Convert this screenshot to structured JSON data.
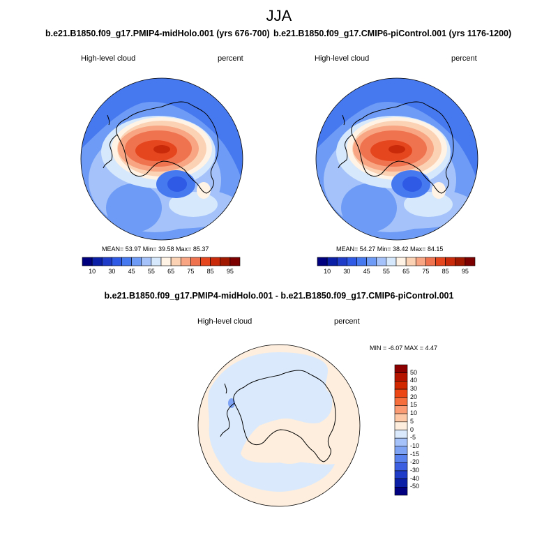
{
  "season_title": "JJA",
  "panels": [
    {
      "case_title": "b.e21.B1850.f09_g17.PMIP4-midHolo.001 (yrs 676-700)",
      "variable": "High-level cloud",
      "units": "percent",
      "stats": "MEAN=  53.97   Min=  39.58   Max=  85.37"
    },
    {
      "case_title": "b.e21.B1850.f09_g17.CMIP6-piControl.001 (yrs 1176-1200)",
      "variable": "High-level cloud",
      "units": "percent",
      "stats": "MEAN=  54.27   Min=  38.42   Max=  84.15"
    }
  ],
  "difference": {
    "case_title": "b.e21.B1850.f09_g17.PMIP4-midHolo.001 - b.e21.B1850.f09_g17.CMIP6-piControl.001",
    "variable": "High-level cloud",
    "units": "percent",
    "stats": "MIN =  -6.07 MAX =   4.47"
  },
  "chart_data": [
    {
      "type": "heatmap",
      "title": "b.e21.B1850.f09_g17.PMIP4-midHolo.001 (yrs 676-700)",
      "projection": "south polar stereographic",
      "variable": "High-level cloud",
      "units": "percent",
      "mean": 53.97,
      "min": 39.58,
      "max": 85.37,
      "colorbar_ticks": [
        "10",
        "30",
        "45",
        "55",
        "65",
        "75",
        "85",
        "95"
      ],
      "colorbar_colors": [
        "#00007f",
        "#0a1ea6",
        "#1e3cc8",
        "#2e5ae6",
        "#4678f0",
        "#6e9bf5",
        "#a5c3fa",
        "#d5e8fc",
        "#fff3e6",
        "#fcd2b4",
        "#f7a582",
        "#f07350",
        "#e6461e",
        "#c82a0a",
        "#a01800",
        "#7d0000"
      ]
    },
    {
      "type": "heatmap",
      "title": "b.e21.B1850.f09_g17.CMIP6-piControl.001 (yrs 1176-1200)",
      "projection": "south polar stereographic",
      "variable": "High-level cloud",
      "units": "percent",
      "mean": 54.27,
      "min": 38.42,
      "max": 84.15,
      "colorbar_ticks": [
        "10",
        "30",
        "45",
        "55",
        "65",
        "75",
        "85",
        "95"
      ],
      "colorbar_colors": [
        "#00007f",
        "#0a1ea6",
        "#1e3cc8",
        "#2e5ae6",
        "#4678f0",
        "#6e9bf5",
        "#a5c3fa",
        "#d5e8fc",
        "#fff3e6",
        "#fcd2b4",
        "#f7a582",
        "#f07350",
        "#e6461e",
        "#c82a0a",
        "#a01800",
        "#7d0000"
      ]
    },
    {
      "type": "heatmap",
      "title": "b.e21.B1850.f09_g17.PMIP4-midHolo.001 - b.e21.B1850.f09_g17.CMIP6-piControl.001",
      "projection": "south polar stereographic",
      "variable": "High-level cloud",
      "units": "percent",
      "min": -6.07,
      "max": 4.47,
      "colorbar_ticks": [
        "50",
        "40",
        "30",
        "20",
        "15",
        "10",
        "5",
        "0",
        "-5",
        "-10",
        "-15",
        "-20",
        "-30",
        "-40",
        "-50"
      ],
      "colorbar_colors": [
        "#8c0000",
        "#b41400",
        "#d22800",
        "#eb4614",
        "#f56e3c",
        "#fa9b73",
        "#fcc8a5",
        "#fdeedd",
        "#daeafc",
        "#a5c3fa",
        "#7ea3f5",
        "#5a82ee",
        "#3c5fe1",
        "#1e3cc8",
        "#0a1ea6",
        "#000080"
      ]
    }
  ]
}
